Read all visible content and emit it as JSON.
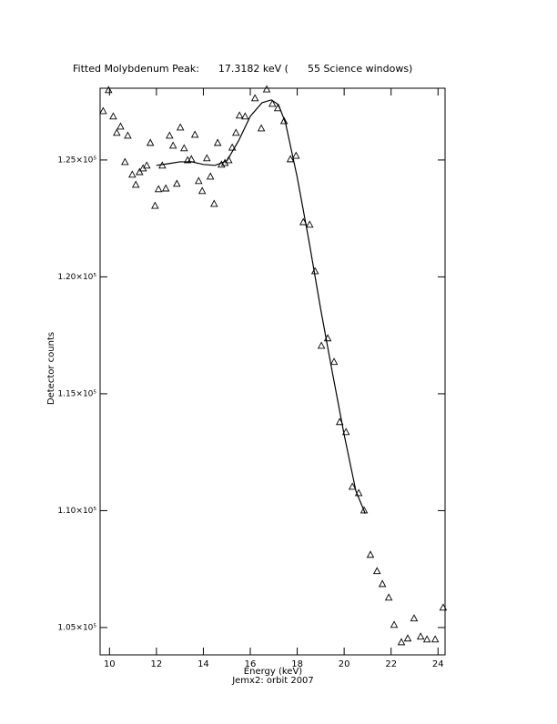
{
  "chart_data": {
    "type": "scatter",
    "title": "Fitted Molybdenum Peak:      17.3182 keV (      55 Science windows)",
    "subtitle": "Jemx2: orbit 2007",
    "x_label": "Energy (keV)",
    "y_label": "Detector counts",
    "xlim": [
      9.6,
      24.3
    ],
    "ylim": [
      103830,
      128070
    ],
    "xticks": [
      10,
      12,
      14,
      16,
      18,
      20,
      22,
      24
    ],
    "yticks": [
      {
        "value": 105000,
        "label": "1.05×10⁵"
      },
      {
        "value": 110000,
        "label": "1.10×10⁵"
      },
      {
        "value": 115000,
        "label": "1.15×10⁵"
      },
      {
        "value": 120000,
        "label": "1.20×10⁵"
      },
      {
        "value": 125000,
        "label": "1.25×10⁵"
      }
    ],
    "color": "#000000",
    "points": {
      "x": [
        9.73,
        9.96,
        10.16,
        10.31,
        10.47,
        10.66,
        10.78,
        10.97,
        11.12,
        11.28,
        11.43,
        11.59,
        11.74,
        11.94,
        12.09,
        12.25,
        12.4,
        12.56,
        12.71,
        12.87,
        13.02,
        13.18,
        13.33,
        13.49,
        13.64,
        13.8,
        13.95,
        14.15,
        14.3,
        14.46,
        14.61,
        14.77,
        14.92,
        15.08,
        15.23,
        15.39,
        15.54,
        15.78,
        16.2,
        16.47,
        16.7,
        16.94,
        17.17,
        17.44,
        17.71,
        17.95,
        18.26,
        18.53,
        18.76,
        19.03,
        19.3,
        19.57,
        19.81,
        20.08,
        20.35,
        20.62,
        20.85,
        21.12,
        21.4,
        21.63,
        21.9,
        22.13,
        22.44,
        22.71,
        22.98,
        23.26,
        23.53,
        23.88,
        24.22
      ],
      "values": [
        127100,
        128000,
        126870,
        126170,
        126440,
        124920,
        126050,
        124380,
        123950,
        124490,
        124650,
        124770,
        125740,
        123050,
        123760,
        124770,
        123790,
        126050,
        125620,
        123990,
        126400,
        125510,
        125000,
        125040,
        126090,
        124110,
        123680,
        125080,
        124300,
        123130,
        125740,
        124810,
        124880,
        125000,
        125540,
        126170,
        126910,
        126870,
        127650,
        126360,
        128030,
        127410,
        127220,
        126670,
        125040,
        125190,
        122350,
        122240,
        120250,
        117060,
        117380,
        116370,
        113800,
        113370,
        111030,
        110760,
        110020,
        108120,
        107420,
        106870,
        106290,
        105120,
        104380,
        104540,
        105400,
        104620,
        104500,
        104500,
        105860
      ]
    },
    "fit": {
      "x": [
        12.0,
        12.5,
        13.0,
        13.5,
        14.0,
        14.5,
        15.0,
        15.5,
        16.0,
        16.5,
        16.9,
        17.2,
        17.5,
        18.0,
        18.5,
        19.0,
        19.5,
        20.0,
        20.5,
        20.9
      ],
      "values": [
        124770,
        124840,
        124920,
        124920,
        124810,
        124770,
        124960,
        125820,
        126870,
        127450,
        127570,
        127370,
        126590,
        124260,
        121540,
        118620,
        115900,
        113250,
        110840,
        109870
      ]
    }
  }
}
